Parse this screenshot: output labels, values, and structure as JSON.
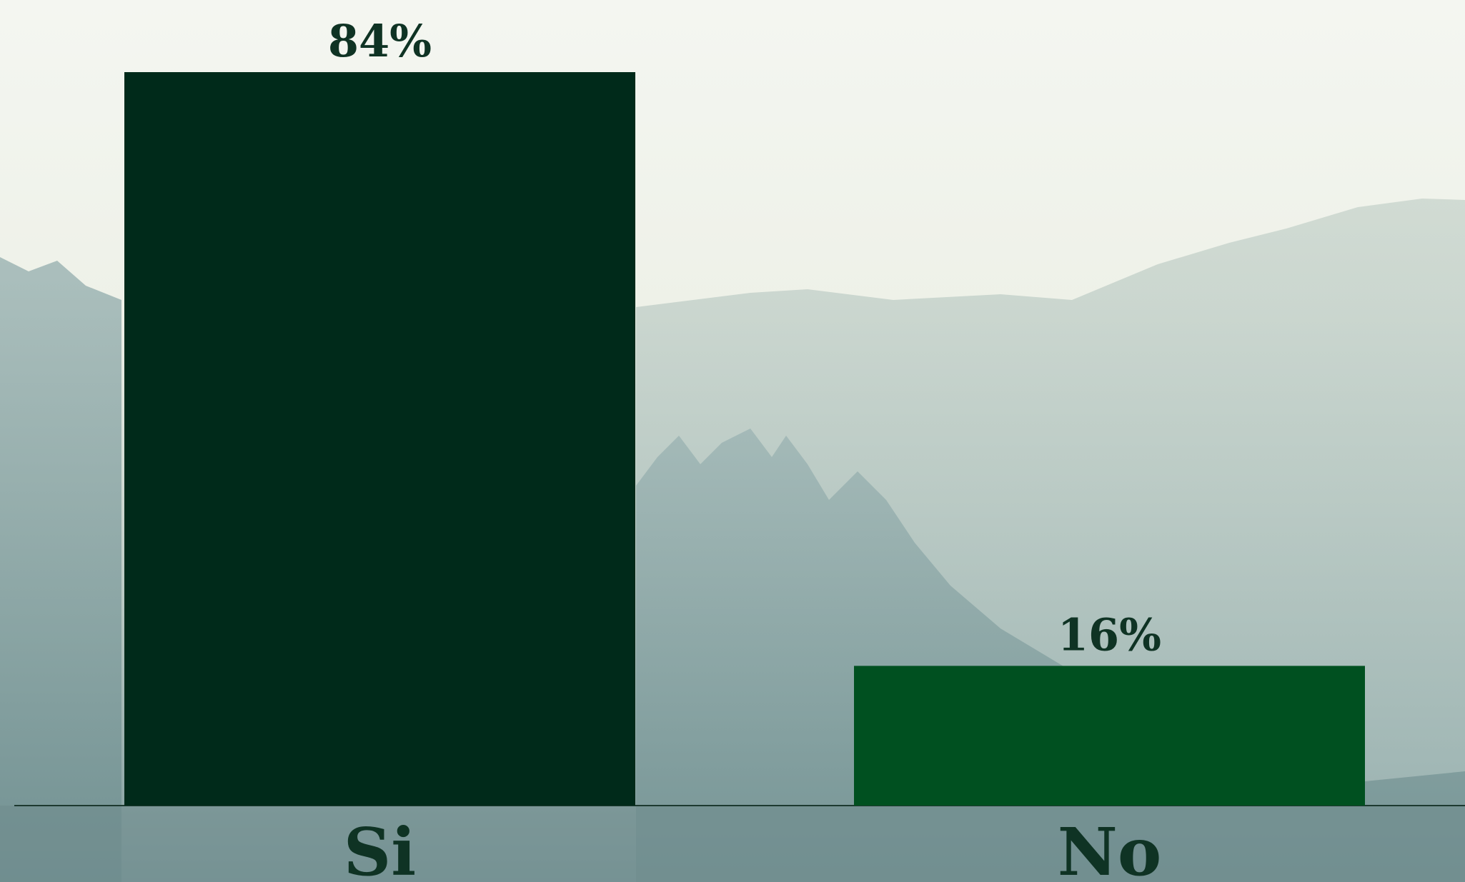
{
  "chart_data": {
    "type": "bar",
    "categories": [
      "Si",
      "No"
    ],
    "values": [
      84,
      16
    ],
    "value_labels": [
      "84%",
      "16%"
    ],
    "colors": [
      "#002a1a",
      "#005020"
    ]
  }
}
